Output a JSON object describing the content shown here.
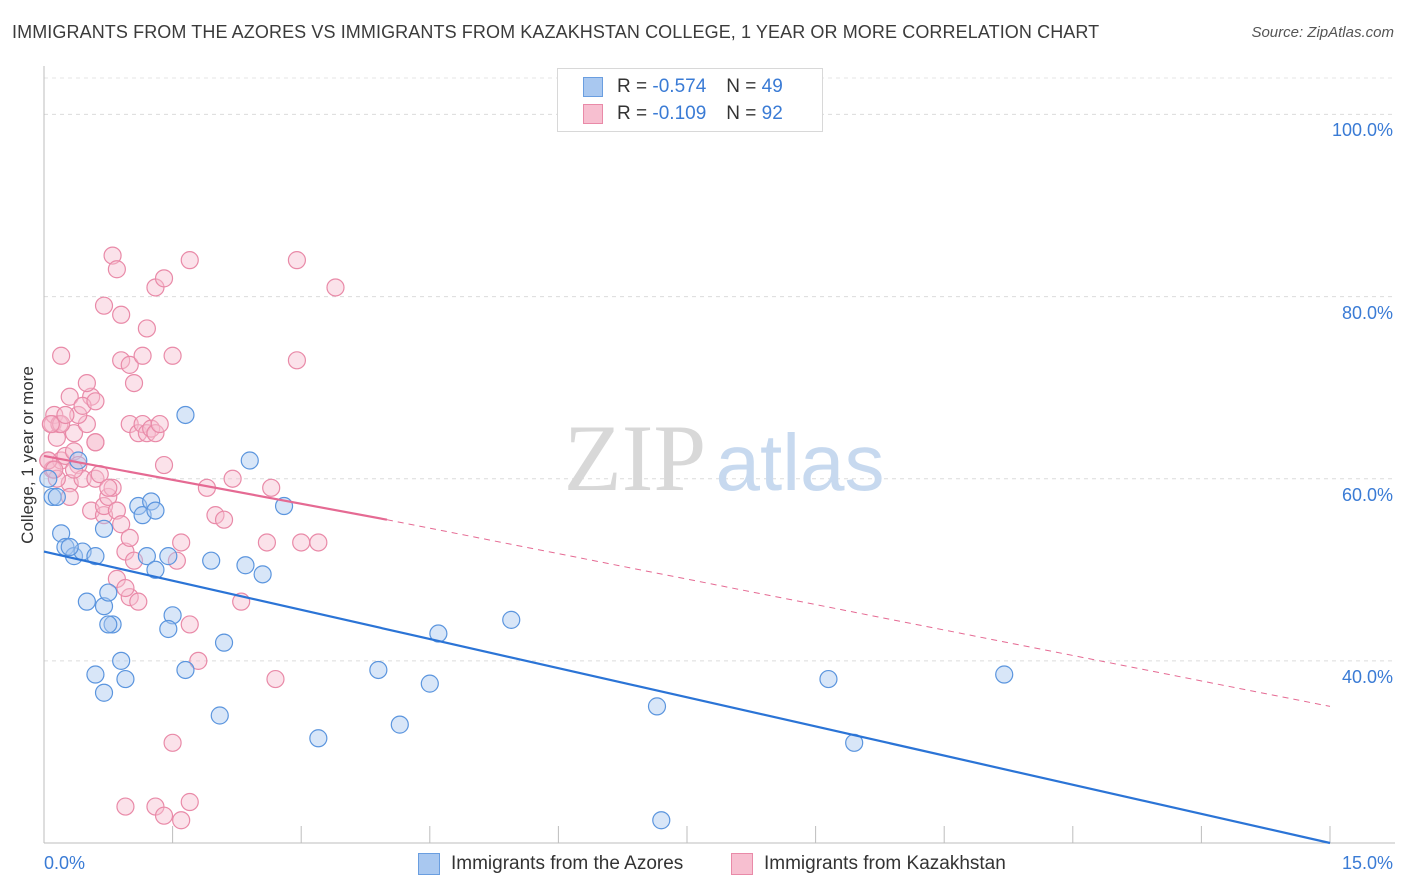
{
  "chart_data": {
    "type": "scatter",
    "title": "IMMIGRANTS FROM THE AZORES VS IMMIGRANTS FROM KAZAKHSTAN COLLEGE, 1 YEAR OR MORE CORRELATION CHART",
    "source": "Source: ZipAtlas.com",
    "xlabel": "",
    "ylabel": "College, 1 year or more",
    "xlim": [
      0,
      15
    ],
    "ylim": [
      20,
      104
    ],
    "x_tick_labels": [
      "0.0%",
      "15.0%"
    ],
    "y_ticks": [
      40,
      60,
      80,
      100
    ],
    "y_tick_labels": [
      "40.0%",
      "60.0%",
      "80.0%",
      "100.0%"
    ],
    "watermark": {
      "part1": "ZIP",
      "part2": "atlas"
    },
    "legend": {
      "r_label": "R =",
      "n_label": "N =",
      "entries": [
        {
          "name": "Immigrants from the Azores",
          "r": "-0.574",
          "n": "49",
          "fill": "#a9c8f0",
          "stroke": "#6a9ee0"
        },
        {
          "name": "Immigrants from Kazakhstan",
          "r": "-0.109",
          "n": "92",
          "fill": "#f7bfd0",
          "stroke": "#e98aa8"
        }
      ]
    },
    "series": [
      {
        "name": "Immigrants from the Azores",
        "color": "#5b95de",
        "fill": "rgba(169,200,240,0.45)",
        "trend": {
          "x": [
            0,
            15
          ],
          "y": [
            52.0,
            20.0
          ],
          "style": "solid",
          "color": "#2b74d6"
        },
        "points": [
          [
            0.1,
            58
          ],
          [
            0.05,
            60
          ],
          [
            0.2,
            54
          ],
          [
            0.25,
            52.5
          ],
          [
            0.35,
            51.5
          ],
          [
            0.4,
            62
          ],
          [
            0.45,
            52
          ],
          [
            0.6,
            51.5
          ],
          [
            0.5,
            46.5
          ],
          [
            0.7,
            54.5
          ],
          [
            0.7,
            46
          ],
          [
            0.75,
            47.5
          ],
          [
            0.6,
            38.5
          ],
          [
            0.7,
            36.5
          ],
          [
            0.8,
            44
          ],
          [
            0.75,
            44
          ],
          [
            0.9,
            40
          ],
          [
            0.95,
            38
          ],
          [
            1.1,
            57
          ],
          [
            1.15,
            56
          ],
          [
            1.25,
            57.5
          ],
          [
            1.3,
            56.5
          ],
          [
            1.2,
            51.5
          ],
          [
            1.3,
            50
          ],
          [
            1.45,
            51.5
          ],
          [
            1.5,
            45
          ],
          [
            1.45,
            43.5
          ],
          [
            1.65,
            67
          ],
          [
            1.65,
            39
          ],
          [
            1.95,
            51
          ],
          [
            2.1,
            42
          ],
          [
            2.05,
            34
          ],
          [
            2.4,
            62
          ],
          [
            2.35,
            50.5
          ],
          [
            2.55,
            49.5
          ],
          [
            2.8,
            57
          ],
          [
            3.2,
            31.5
          ],
          [
            3.9,
            39
          ],
          [
            4.15,
            33
          ],
          [
            4.5,
            37.5
          ],
          [
            4.6,
            43
          ],
          [
            5.45,
            44.5
          ],
          [
            7.15,
            35
          ],
          [
            7.2,
            22.5
          ],
          [
            9.15,
            38
          ],
          [
            9.45,
            31
          ],
          [
            11.2,
            38.5
          ],
          [
            0.3,
            52.5
          ],
          [
            0.15,
            58
          ]
        ]
      },
      {
        "name": "Immigrants from Kazakhstan",
        "color": "#e98aa8",
        "fill": "rgba(247,191,208,0.45)",
        "trend": {
          "x": [
            0,
            4.0
          ],
          "y": [
            62.5,
            55.5
          ],
          "style": "solid",
          "color": "#e56a93"
        },
        "trend_ext": {
          "x": [
            4.0,
            15
          ],
          "y": [
            55.5,
            35.0
          ],
          "style": "dashed",
          "color": "#e56a93"
        },
        "points": [
          [
            0.05,
            62
          ],
          [
            0.1,
            61
          ],
          [
            0.1,
            66
          ],
          [
            0.12,
            67
          ],
          [
            0.15,
            64.5
          ],
          [
            0.18,
            66
          ],
          [
            0.2,
            62
          ],
          [
            0.25,
            62.5
          ],
          [
            0.3,
            59.5
          ],
          [
            0.35,
            65
          ],
          [
            0.35,
            63
          ],
          [
            0.4,
            61.5
          ],
          [
            0.45,
            60
          ],
          [
            0.5,
            66
          ],
          [
            0.55,
            69
          ],
          [
            0.55,
            56.5
          ],
          [
            0.6,
            64
          ],
          [
            0.6,
            60
          ],
          [
            0.65,
            60.5
          ],
          [
            0.7,
            56
          ],
          [
            0.7,
            57
          ],
          [
            0.75,
            58
          ],
          [
            0.8,
            59
          ],
          [
            0.85,
            56.5
          ],
          [
            0.9,
            55
          ],
          [
            0.95,
            52
          ],
          [
            1.0,
            53.5
          ],
          [
            1.05,
            51
          ],
          [
            1.0,
            47
          ],
          [
            1.1,
            46.5
          ],
          [
            0.85,
            49
          ],
          [
            0.95,
            48
          ],
          [
            0.2,
            73.5
          ],
          [
            0.3,
            69
          ],
          [
            0.4,
            67
          ],
          [
            0.45,
            68
          ],
          [
            0.5,
            70.5
          ],
          [
            0.6,
            68.5
          ],
          [
            0.7,
            79
          ],
          [
            0.8,
            84.5
          ],
          [
            0.85,
            83
          ],
          [
            0.9,
            78
          ],
          [
            0.9,
            73
          ],
          [
            1.0,
            72.5
          ],
          [
            1.05,
            70.5
          ],
          [
            1.15,
            73.5
          ],
          [
            1.2,
            76.5
          ],
          [
            1.3,
            81
          ],
          [
            1.4,
            82
          ],
          [
            1.5,
            73.5
          ],
          [
            1.7,
            84
          ],
          [
            1.0,
            66
          ],
          [
            1.1,
            65
          ],
          [
            1.15,
            66
          ],
          [
            1.2,
            65
          ],
          [
            1.25,
            65.5
          ],
          [
            1.3,
            65
          ],
          [
            1.35,
            66
          ],
          [
            1.4,
            61.5
          ],
          [
            1.55,
            51
          ],
          [
            1.6,
            53
          ],
          [
            1.7,
            44
          ],
          [
            1.8,
            40
          ],
          [
            1.9,
            59
          ],
          [
            2.0,
            56
          ],
          [
            2.1,
            55.5
          ],
          [
            2.2,
            60
          ],
          [
            2.3,
            46.5
          ],
          [
            2.6,
            53
          ],
          [
            2.65,
            59
          ],
          [
            2.7,
            38
          ],
          [
            2.95,
            84
          ],
          [
            2.95,
            73
          ],
          [
            3.0,
            53
          ],
          [
            3.4,
            81
          ],
          [
            3.2,
            53
          ],
          [
            1.5,
            31
          ],
          [
            1.3,
            24
          ],
          [
            1.4,
            23
          ],
          [
            1.6,
            22.5
          ],
          [
            1.7,
            24.5
          ],
          [
            0.95,
            24
          ],
          [
            0.2,
            66
          ],
          [
            0.25,
            67
          ],
          [
            0.15,
            60
          ],
          [
            0.35,
            61
          ],
          [
            0.3,
            58
          ],
          [
            0.05,
            62
          ],
          [
            0.08,
            66
          ],
          [
            0.12,
            61
          ],
          [
            0.6,
            64
          ],
          [
            0.75,
            59
          ]
        ]
      }
    ]
  }
}
